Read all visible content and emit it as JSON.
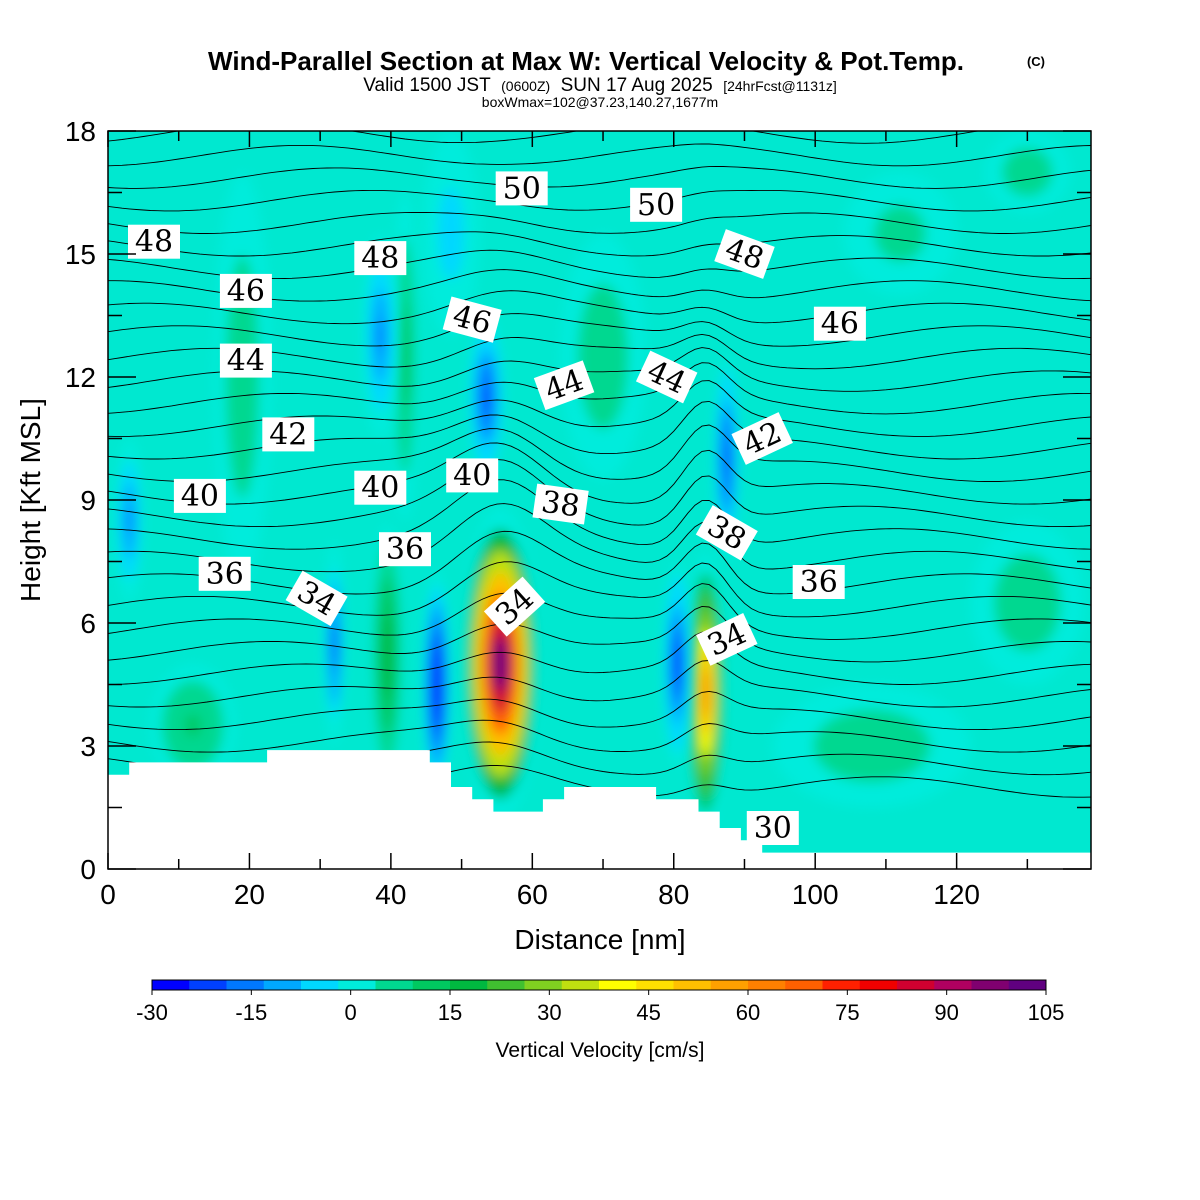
{
  "title": {
    "main": "Wind-Parallel Section at Max W: Vertical Velocity & Pot.Temp.",
    "copyright": "(C)",
    "valid_prefix": "Valid 1500 JST",
    "valid_utc": "(0600Z)",
    "valid_date": "SUN 17 Aug 2025",
    "forecast": "[24hrFcst@1131z]",
    "box_info": "boxWmax=102@37.23,140.27,1677m"
  },
  "colors": {
    "background": "#00e8d0",
    "terrain": "#ffffff",
    "contour": "#000000",
    "scale": [
      "#0000ff",
      "#0040ff",
      "#0078ff",
      "#00a8ff",
      "#00d8ff",
      "#00ecdc",
      "#00d890",
      "#00c860",
      "#00b840",
      "#40c030",
      "#80d020",
      "#c0e010",
      "#ffff00",
      "#ffe000",
      "#ffc000",
      "#ffa000",
      "#ff8000",
      "#ff6000",
      "#ff2000",
      "#f00000",
      "#d00030",
      "#b00060",
      "#800070",
      "#600080"
    ]
  },
  "chart_data": {
    "type": "heatmap",
    "title": "Wind-Parallel Section at Max W: Vertical Velocity & Pot.Temp.",
    "xlabel": "Distance [nm]",
    "ylabel": "Height [Kft MSL]",
    "xlim": [
      0,
      139
    ],
    "ylim": [
      0,
      18
    ],
    "x_ticks": [
      "0",
      "20",
      "40",
      "60",
      "80",
      "100",
      "120"
    ],
    "x_tick_values": [
      0,
      20,
      40,
      60,
      80,
      100,
      120
    ],
    "y_ticks": [
      "0",
      "3",
      "6",
      "9",
      "12",
      "15",
      "18"
    ],
    "y_tick_values": [
      0,
      3,
      6,
      9,
      12,
      15,
      18
    ],
    "colorbar": {
      "label": "Vertical Velocity [cm/s]",
      "min": -30,
      "max": 105,
      "step": 15,
      "tick_labels": [
        "-30",
        "-15",
        "0",
        "15",
        "30",
        "45",
        "60",
        "75",
        "90",
        "105"
      ]
    },
    "terrain_profile": [
      [
        0,
        2.3
      ],
      [
        3,
        2.3
      ],
      [
        3,
        2.6
      ],
      [
        22.5,
        2.6
      ],
      [
        22.5,
        2.9
      ],
      [
        45.5,
        2.9
      ],
      [
        45.5,
        2.6
      ],
      [
        48.5,
        2.6
      ],
      [
        48.5,
        2.0
      ],
      [
        51.5,
        2.0
      ],
      [
        51.5,
        1.7
      ],
      [
        54.5,
        1.7
      ],
      [
        54.5,
        1.4
      ],
      [
        61.5,
        1.4
      ],
      [
        61.5,
        1.7
      ],
      [
        64.5,
        1.7
      ],
      [
        64.5,
        2.0
      ],
      [
        77.5,
        2.0
      ],
      [
        77.5,
        1.7
      ],
      [
        83.5,
        1.7
      ],
      [
        83.5,
        1.4
      ],
      [
        86.5,
        1.4
      ],
      [
        86.5,
        1.0
      ],
      [
        89.5,
        1.0
      ],
      [
        89.5,
        0.7
      ],
      [
        92.5,
        0.7
      ],
      [
        92.5,
        0.4
      ],
      [
        139,
        0.4
      ]
    ],
    "w_features": [
      {
        "x": 55.5,
        "y": 5.0,
        "rx": 5.5,
        "ry": 3.8,
        "w": 102
      },
      {
        "x": 84.5,
        "y": 4.3,
        "rx": 2.8,
        "ry": 3.4,
        "w": 60
      },
      {
        "x": 46.5,
        "y": 4.5,
        "rx": 2.0,
        "ry": 2.8,
        "w": -30
      },
      {
        "x": 80.5,
        "y": 5.0,
        "rx": 2.0,
        "ry": 2.5,
        "w": -25
      },
      {
        "x": 32.0,
        "y": 5.5,
        "rx": 1.5,
        "ry": 2.5,
        "w": -20
      },
      {
        "x": 3.0,
        "y": 8.5,
        "rx": 2.0,
        "ry": 2.0,
        "w": -15
      },
      {
        "x": 39.5,
        "y": 5.2,
        "rx": 2.2,
        "ry": 3.2,
        "w": 20
      },
      {
        "x": 42.0,
        "y": 12.5,
        "rx": 2.0,
        "ry": 4.0,
        "w": 12
      },
      {
        "x": 53.5,
        "y": 11.5,
        "rx": 2.5,
        "ry": 2.0,
        "w": -22
      },
      {
        "x": 38.5,
        "y": 13.0,
        "rx": 2.5,
        "ry": 2.5,
        "w": -15
      },
      {
        "x": 87.5,
        "y": 10.0,
        "rx": 1.8,
        "ry": 2.5,
        "w": -22
      },
      {
        "x": 19.0,
        "y": 12.0,
        "rx": 4.0,
        "ry": 5.0,
        "w": 7
      },
      {
        "x": 70.0,
        "y": 12.5,
        "rx": 6.0,
        "ry": 3.0,
        "w": 7
      },
      {
        "x": 12.0,
        "y": 3.5,
        "rx": 6.0,
        "ry": 1.5,
        "w": 10
      },
      {
        "x": 108.0,
        "y": 3.0,
        "rx": 14.0,
        "ry": 1.5,
        "w": 6
      },
      {
        "x": 130.0,
        "y": 6.5,
        "rx": 8.0,
        "ry": 2.0,
        "w": 6
      },
      {
        "x": 112.0,
        "y": 15.5,
        "rx": 8.0,
        "ry": 1.5,
        "w": 5
      },
      {
        "x": 130.0,
        "y": 17.0,
        "rx": 6.0,
        "ry": 1.0,
        "w": 6
      },
      {
        "x": 48.5,
        "y": 15.5,
        "rx": 4.0,
        "ry": 2.5,
        "w": -5
      }
    ],
    "isentrope_labels": [
      {
        "text": "48",
        "x": 6.5,
        "y": 15.3,
        "angle": 0
      },
      {
        "text": "46",
        "x": 19.5,
        "y": 14.1,
        "angle": 0
      },
      {
        "text": "44",
        "x": 19.5,
        "y": 12.4,
        "angle": 0
      },
      {
        "text": "42",
        "x": 25.5,
        "y": 10.6,
        "angle": 0
      },
      {
        "text": "40",
        "x": 13.0,
        "y": 9.1,
        "angle": 0
      },
      {
        "text": "36",
        "x": 16.5,
        "y": 7.2,
        "angle": 0
      },
      {
        "text": "34",
        "x": 29.5,
        "y": 6.6,
        "angle": 30
      },
      {
        "text": "48",
        "x": 38.5,
        "y": 14.9,
        "angle": 0
      },
      {
        "text": "40",
        "x": 38.5,
        "y": 9.3,
        "angle": 0
      },
      {
        "text": "36",
        "x": 42.0,
        "y": 7.8,
        "angle": 0
      },
      {
        "text": "46",
        "x": 51.5,
        "y": 13.4,
        "angle": 15
      },
      {
        "text": "40",
        "x": 51.5,
        "y": 9.6,
        "angle": 0
      },
      {
        "text": "50",
        "x": 58.5,
        "y": 16.6,
        "angle": 0
      },
      {
        "text": "44",
        "x": 64.5,
        "y": 11.8,
        "angle": -20
      },
      {
        "text": "38",
        "x": 64.0,
        "y": 8.9,
        "angle": 8
      },
      {
        "text": "34",
        "x": 57.5,
        "y": 6.4,
        "angle": -42
      },
      {
        "text": "50",
        "x": 77.5,
        "y": 16.2,
        "angle": 0
      },
      {
        "text": "44",
        "x": 79.0,
        "y": 12.0,
        "angle": 25
      },
      {
        "text": "48",
        "x": 90.0,
        "y": 15.0,
        "angle": 20
      },
      {
        "text": "42",
        "x": 92.5,
        "y": 10.5,
        "angle": -25
      },
      {
        "text": "38",
        "x": 87.5,
        "y": 8.2,
        "angle": 30
      },
      {
        "text": "34",
        "x": 87.5,
        "y": 5.6,
        "angle": -25
      },
      {
        "text": "46",
        "x": 103.5,
        "y": 13.3,
        "angle": 0
      },
      {
        "text": "36",
        "x": 100.5,
        "y": 7.0,
        "angle": 0
      },
      {
        "text": "30",
        "x": 94.0,
        "y": 1.0,
        "angle": 0
      }
    ]
  }
}
